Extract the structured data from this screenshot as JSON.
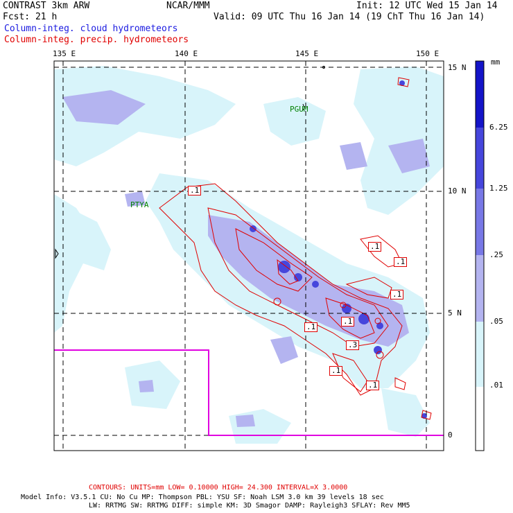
{
  "header": {
    "model": "CONTRAST  3km ARW",
    "center": "NCAR/MMM",
    "init": "Init: 12 UTC Wed 15 Jan 14",
    "fcst": "Fcst:   21 h",
    "valid": "Valid: 09 UTC Thu 16 Jan 14 (19 ChT Thu 16 Jan 14)",
    "field1": "Column-integ. cloud hydrometeors",
    "field2": "Column-integ. precip. hydrometeors"
  },
  "axes": {
    "lon_labels": [
      "135 E",
      "140 E",
      "145 E",
      "150 E"
    ],
    "lat_labels": [
      "15 N",
      "10 N",
      "5 N",
      "0"
    ]
  },
  "places": [
    "PGUM",
    "PTYA"
  ],
  "colorbar": {
    "units": "mm",
    "levels": [
      "6.25",
      "1.25",
      ".25",
      ".05",
      ".01"
    ],
    "colors": [
      "#1414c8",
      "#4646dc",
      "#7878e6",
      "#b4b4f0",
      "#d8f4fa",
      "#ffffff"
    ]
  },
  "contour_labels": [
    ".1",
    ".1",
    ".1",
    ".1",
    ".1",
    ".1",
    ".3",
    ".1",
    ".1"
  ],
  "footer": {
    "contours": "CONTOURS:  UNITS=mm  LOW= 0.10000     HIGH=  24.300     INTERVAL=X  3.0000",
    "line1": "Model Info: V3.5.1    CU: No Cu     MP: Thompson     PBL: YSU       SF: Noah LSM     3.0 km   39 levels   18 sec",
    "line2": "LW: RRTMG    SW: RRTMG   DIFF: simple KM: 3D Smagor DAMP: Rayleigh3  SFLAY: Rev MM5"
  }
}
